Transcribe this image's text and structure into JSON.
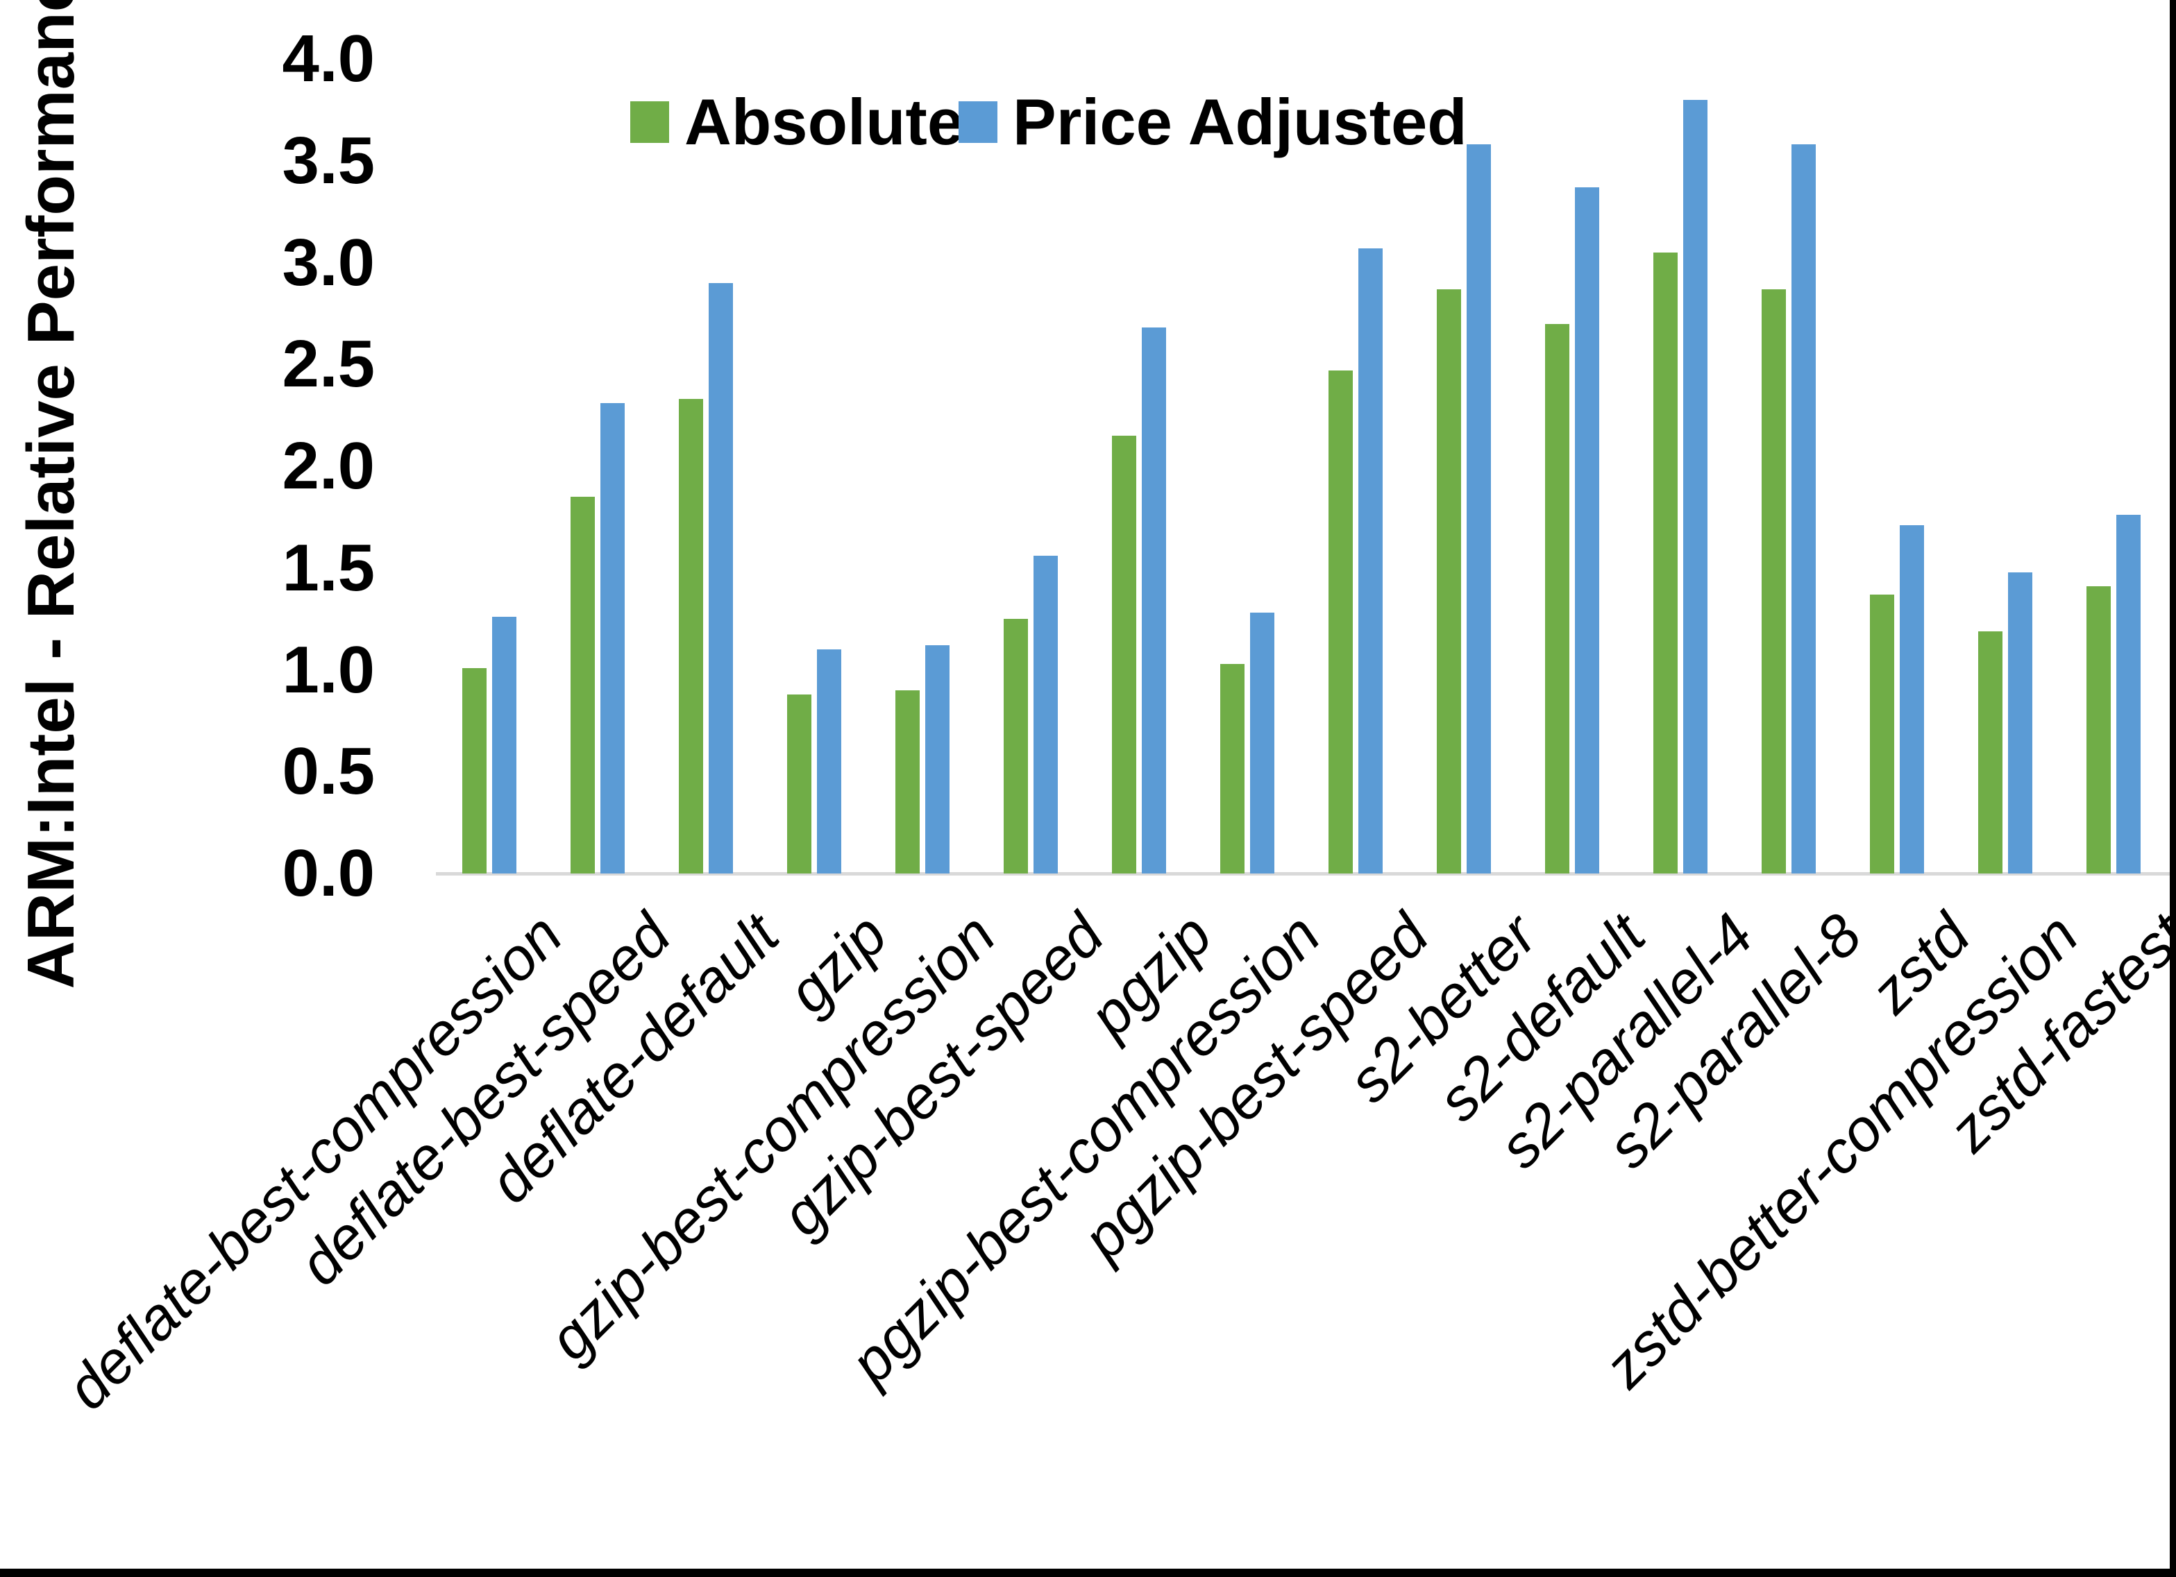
{
  "chart_data": {
    "type": "bar",
    "title": "",
    "xlabel": "",
    "ylabel": "ARM:Intel - Relative Performance",
    "ylim": [
      0.0,
      4.0
    ],
    "ytick_step": 0.5,
    "yticks": [
      0.0,
      0.5,
      1.0,
      1.5,
      2.0,
      2.5,
      3.0,
      3.5,
      4.0
    ],
    "grid": false,
    "legend_position": "top-center",
    "categories": [
      "deflate-best-compression",
      "deflate-best-speed",
      "deflate-default",
      "gzip",
      "gzip-best-compression",
      "gzip-best-speed",
      "pgzip",
      "pgzip-best-compression",
      "pgzip-best-speed",
      "s2-better",
      "s2-default",
      "s2-parallel-4",
      "s2-parallel-8",
      "zstd",
      "zstd-better-compression",
      "zstd-fastest"
    ],
    "series": [
      {
        "name": "Absolute",
        "color": "#70AD47",
        "values": [
          1.01,
          1.85,
          2.33,
          0.88,
          0.9,
          1.25,
          2.15,
          1.03,
          2.47,
          2.87,
          2.7,
          3.05,
          2.87,
          1.37,
          1.19,
          1.41
        ]
      },
      {
        "name": "Price Adjusted",
        "color": "#5B9BD5",
        "values": [
          1.26,
          2.31,
          2.9,
          1.1,
          1.12,
          1.56,
          2.68,
          1.28,
          3.07,
          3.58,
          3.37,
          3.8,
          3.58,
          1.71,
          1.48,
          1.76
        ]
      }
    ],
    "axis_line_color": "#D9D9D9",
    "text_color": "#000000"
  }
}
